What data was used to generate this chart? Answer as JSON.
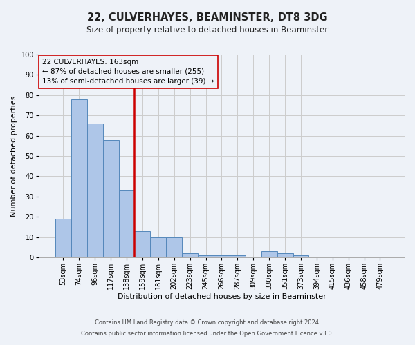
{
  "title1": "22, CULVERHAYES, BEAMINSTER, DT8 3DG",
  "title2": "Size of property relative to detached houses in Beaminster",
  "xlabel": "Distribution of detached houses by size in Beaminster",
  "ylabel": "Number of detached properties",
  "footnote1": "Contains HM Land Registry data © Crown copyright and database right 2024.",
  "footnote2": "Contains public sector information licensed under the Open Government Licence v3.0.",
  "annotation_line1": "22 CULVERHAYES: 163sqm",
  "annotation_line2": "← 87% of detached houses are smaller (255)",
  "annotation_line3": "13% of semi-detached houses are larger (39) →",
  "bar_labels": [
    "53sqm",
    "74sqm",
    "96sqm",
    "117sqm",
    "138sqm",
    "159sqm",
    "181sqm",
    "202sqm",
    "223sqm",
    "245sqm",
    "266sqm",
    "287sqm",
    "309sqm",
    "330sqm",
    "351sqm",
    "373sqm",
    "394sqm",
    "415sqm",
    "436sqm",
    "458sqm",
    "479sqm"
  ],
  "bar_values": [
    19,
    78,
    66,
    58,
    33,
    13,
    10,
    10,
    2,
    1,
    1,
    1,
    0,
    3,
    2,
    1,
    0,
    0,
    0,
    0,
    0
  ],
  "bar_color": "#aec6e8",
  "bar_edge_color": "#5588bb",
  "vline_x": 4.5,
  "vline_color": "#cc0000",
  "box_color": "#cc0000",
  "ylim": [
    0,
    100
  ],
  "yticks": [
    0,
    10,
    20,
    30,
    40,
    50,
    60,
    70,
    80,
    90,
    100
  ],
  "grid_color": "#cccccc",
  "bg_color": "#eef2f8",
  "figsize": [
    6.0,
    5.0
  ],
  "dpi": 100,
  "title1_fontsize": 10.5,
  "title2_fontsize": 8.5,
  "xlabel_fontsize": 8,
  "ylabel_fontsize": 8,
  "tick_fontsize": 7,
  "annotation_fontsize": 7.5,
  "footnote_fontsize": 6
}
